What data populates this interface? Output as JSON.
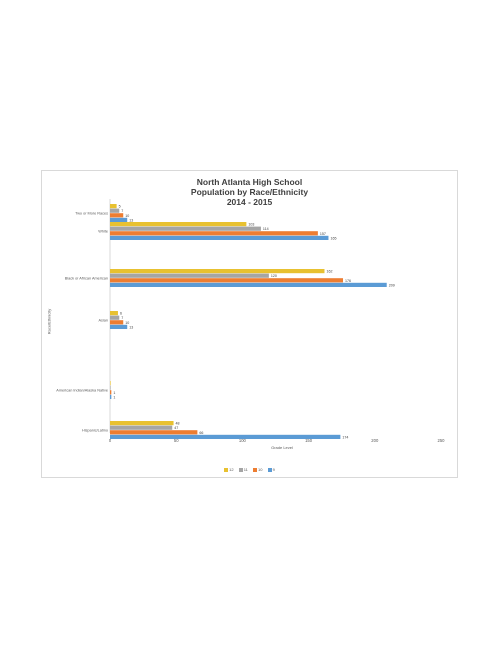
{
  "chart_data": {
    "type": "bar",
    "orientation": "horizontal",
    "title_lines": [
      "North Atlanta High School",
      "Population by Race/Ethnicity",
      "2014 - 2015"
    ],
    "xlabel": "Grade Level",
    "ylabel": "Race/Ethnicity",
    "xlim": [
      0,
      250
    ],
    "xticks": [
      "0",
      "50",
      "100",
      "150",
      "200",
      "250"
    ],
    "grid": false,
    "legend_position": "bottom",
    "categories": [
      "Two or More Races",
      "White",
      "Black or African American",
      "Asian",
      "American Indian/Alaska Native",
      "Hispanic/Latino"
    ],
    "series": [
      {
        "name": "12",
        "color": "#e8c130",
        "values": [
          5,
          103,
          162,
          6,
          0,
          48
        ]
      },
      {
        "name": "11",
        "color": "#a5a5a5",
        "values": [
          7,
          114,
          120,
          7,
          0,
          47
        ]
      },
      {
        "name": "10",
        "color": "#ed7d31",
        "values": [
          10,
          157,
          176,
          10,
          1,
          66
        ]
      },
      {
        "name": "9",
        "color": "#5b9bd5",
        "values": [
          13,
          165,
          209,
          13,
          1,
          174
        ]
      }
    ]
  }
}
